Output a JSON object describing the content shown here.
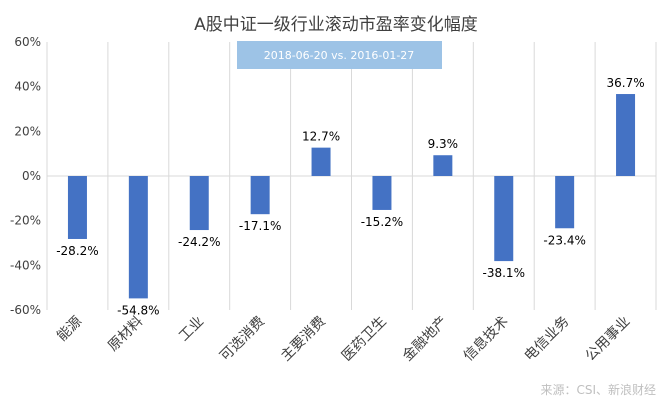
{
  "chart_data": {
    "type": "bar",
    "title": "A股中证一级行业滚动市盈率变化幅度",
    "subtitle": "2018-06-20  vs. 2016-01-27",
    "categories": [
      "能源",
      "原材料",
      "工业",
      "可选消费",
      "主要消费",
      "医药卫生",
      "金融地产",
      "信息技术",
      "电信业务",
      "公用事业"
    ],
    "values": [
      -28.2,
      -54.8,
      -24.2,
      -17.1,
      12.7,
      -15.2,
      9.3,
      -38.1,
      -23.4,
      36.7
    ],
    "data_labels": [
      "-28.2%",
      "-54.8%",
      "-24.2%",
      "-17.1%",
      "12.7%",
      "-15.2%",
      "9.3%",
      "-38.1%",
      "-23.4%",
      "36.7%"
    ],
    "ylim": [
      -60,
      60
    ],
    "yticks": [
      60,
      40,
      20,
      0,
      -20,
      -40,
      -60
    ],
    "ytick_labels": [
      "60%",
      "40%",
      "20%",
      "0%",
      "-20%",
      "-40%",
      "-60%"
    ],
    "xlabel": "",
    "ylabel": "",
    "grid": "vertical",
    "legend": "none",
    "source": "来源：CSI、新浪财经",
    "colors": {
      "bar": "#4472C4",
      "subtitle_box": "#9DC3E6",
      "grid": "#D9D9D9",
      "text": "#404040"
    }
  }
}
